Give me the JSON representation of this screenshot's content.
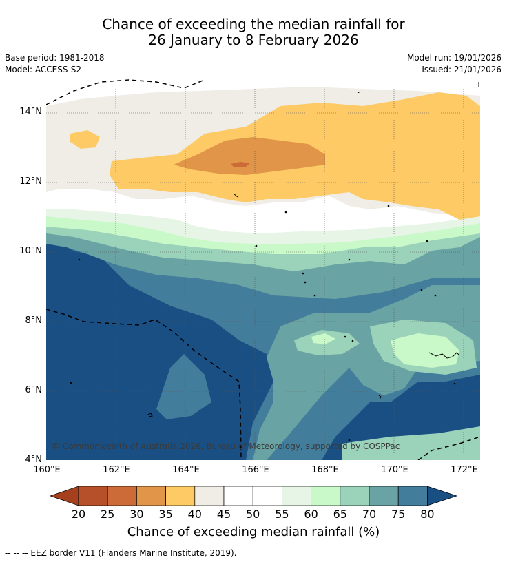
{
  "header": {
    "title_line1": "Chance of exceeding the median rainfall for",
    "title_line2": "26 January to 8 February 2026",
    "base_period": "Base period: 1981-2018",
    "model": "Model: ACCESS-S2",
    "model_run": "Model run: 19/01/2026",
    "issued": "Issued: 21/01/2026"
  },
  "map": {
    "lat_labels": [
      "14°N",
      "12°N",
      "10°N",
      "8°N",
      "6°N",
      "4°N"
    ],
    "lon_labels": [
      "160°E",
      "162°E",
      "164°E",
      "166°E",
      "168°E",
      "170°E",
      "172°E"
    ],
    "copyright": "© Commonwealth of Australia 2026, Bureau of Meteorology, supported by COSPPac"
  },
  "legend": {
    "ticks": [
      "20",
      "25",
      "30",
      "35",
      "40",
      "45",
      "50",
      "55",
      "60",
      "65",
      "70",
      "75",
      "80"
    ],
    "title": "Chance of exceeding median rainfall (%)",
    "colors": [
      "#a5401f",
      "#b5502a",
      "#cc6a38",
      "#e09548",
      "#fdca65",
      "#f0ece6",
      "#ffffff",
      "#ffffff",
      "#e7f5e6",
      "#c9f8c9",
      "#9bd2ba",
      "#6aa3a3",
      "#437d9c",
      "#1a4f84"
    ]
  },
  "footnote": "--  --  -- EEZ border V11 (Flanders Marine Institute, 2019)."
}
